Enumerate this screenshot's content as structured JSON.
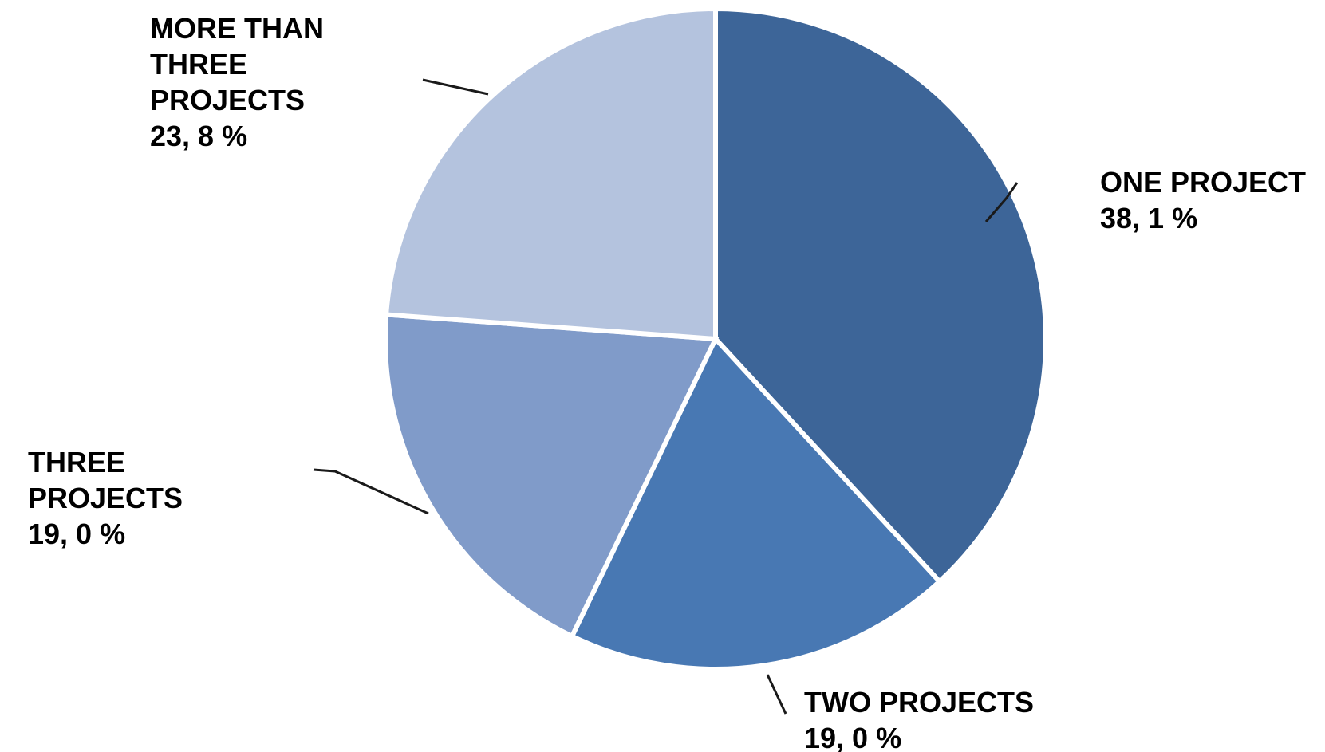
{
  "chart_data": {
    "type": "pie",
    "title": "",
    "unit": "%",
    "start_angle_deg": 0,
    "direction": "clockwise",
    "slices": [
      {
        "name": "ONE PROJECT",
        "value": 38.1,
        "color": "#3d6598",
        "label_lines": [
          "ONE PROJECT",
          "38, 1 %"
        ]
      },
      {
        "name": "TWO PROJECTS",
        "value": 19.0,
        "color": "#4878b3",
        "label_lines": [
          "TWO  PROJECTS",
          "19, 0 %"
        ]
      },
      {
        "name": "THREE PROJECTS",
        "value": 19.0,
        "color": "#809bc9",
        "label_lines": [
          "THREE",
          "PROJECTS",
          "19, 0 %"
        ]
      },
      {
        "name": "MORE THAN THREE PROJECTS",
        "value": 23.8,
        "color": "#b4c3de",
        "label_lines": [
          "MORE THAN",
          "THREE",
          "PROJECTS",
          "23, 8 %"
        ]
      }
    ]
  }
}
